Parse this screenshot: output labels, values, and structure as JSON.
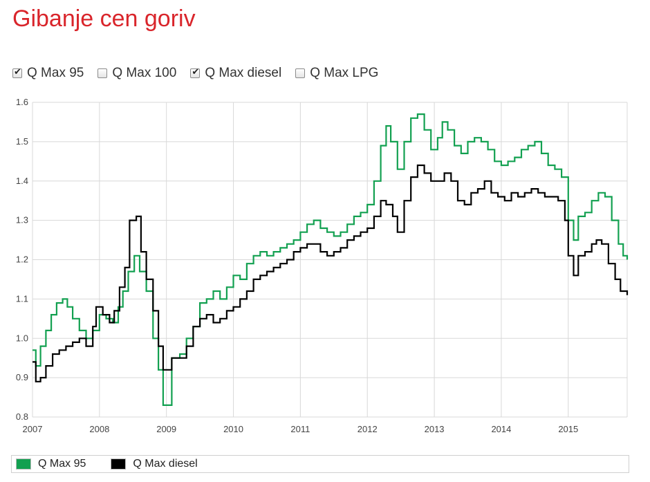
{
  "page": {
    "title": "Gibanje cen goriv"
  },
  "toggles": [
    {
      "label": "Q Max 95",
      "checked": true
    },
    {
      "label": "Q Max 100",
      "checked": false
    },
    {
      "label": "Q Max diesel",
      "checked": true
    },
    {
      "label": "Q Max LPG",
      "checked": false
    }
  ],
  "legend": [
    {
      "label": "Q Max 95",
      "color": "#12a050"
    },
    {
      "label": "Q Max diesel",
      "color": "#000000"
    }
  ],
  "chart_data": {
    "type": "line",
    "step": true,
    "grid": true,
    "legend_position": "bottom",
    "xlim": [
      2007.0,
      2015.88
    ],
    "ylim": [
      0.8,
      1.6
    ],
    "xticks": [
      2007,
      2008,
      2009,
      2010,
      2011,
      2012,
      2013,
      2014,
      2015
    ],
    "yticks": [
      "0.8",
      "0.9",
      "1.0",
      "1.1",
      "1.2",
      "1.3",
      "1.4",
      "1.5",
      "1.6"
    ],
    "series": [
      {
        "name": "Q Max 95",
        "color": "#12a050",
        "points": [
          [
            2007.0,
            0.97
          ],
          [
            2007.05,
            0.93
          ],
          [
            2007.12,
            0.98
          ],
          [
            2007.2,
            1.02
          ],
          [
            2007.28,
            1.06
          ],
          [
            2007.36,
            1.09
          ],
          [
            2007.45,
            1.1
          ],
          [
            2007.52,
            1.08
          ],
          [
            2007.6,
            1.05
          ],
          [
            2007.7,
            1.02
          ],
          [
            2007.8,
            1.0
          ],
          [
            2007.9,
            1.02
          ],
          [
            2008.0,
            1.06
          ],
          [
            2008.1,
            1.05
          ],
          [
            2008.2,
            1.04
          ],
          [
            2008.28,
            1.08
          ],
          [
            2008.35,
            1.12
          ],
          [
            2008.43,
            1.17
          ],
          [
            2008.52,
            1.21
          ],
          [
            2008.6,
            1.17
          ],
          [
            2008.7,
            1.12
          ],
          [
            2008.8,
            1.0
          ],
          [
            2008.88,
            0.92
          ],
          [
            2008.95,
            0.83
          ],
          [
            2009.08,
            0.95
          ],
          [
            2009.2,
            0.96
          ],
          [
            2009.3,
            1.0
          ],
          [
            2009.4,
            1.03
          ],
          [
            2009.5,
            1.09
          ],
          [
            2009.6,
            1.1
          ],
          [
            2009.7,
            1.12
          ],
          [
            2009.8,
            1.1
          ],
          [
            2009.9,
            1.13
          ],
          [
            2010.0,
            1.16
          ],
          [
            2010.1,
            1.15
          ],
          [
            2010.2,
            1.19
          ],
          [
            2010.3,
            1.21
          ],
          [
            2010.4,
            1.22
          ],
          [
            2010.5,
            1.21
          ],
          [
            2010.6,
            1.22
          ],
          [
            2010.7,
            1.23
          ],
          [
            2010.8,
            1.24
          ],
          [
            2010.9,
            1.25
          ],
          [
            2011.0,
            1.27
          ],
          [
            2011.1,
            1.29
          ],
          [
            2011.2,
            1.3
          ],
          [
            2011.3,
            1.28
          ],
          [
            2011.4,
            1.27
          ],
          [
            2011.5,
            1.26
          ],
          [
            2011.6,
            1.27
          ],
          [
            2011.7,
            1.29
          ],
          [
            2011.8,
            1.31
          ],
          [
            2011.9,
            1.32
          ],
          [
            2012.0,
            1.34
          ],
          [
            2012.1,
            1.4
          ],
          [
            2012.2,
            1.49
          ],
          [
            2012.28,
            1.54
          ],
          [
            2012.35,
            1.5
          ],
          [
            2012.45,
            1.43
          ],
          [
            2012.55,
            1.5
          ],
          [
            2012.65,
            1.56
          ],
          [
            2012.75,
            1.57
          ],
          [
            2012.85,
            1.53
          ],
          [
            2012.95,
            1.48
          ],
          [
            2013.05,
            1.51
          ],
          [
            2013.12,
            1.55
          ],
          [
            2013.2,
            1.53
          ],
          [
            2013.3,
            1.49
          ],
          [
            2013.4,
            1.47
          ],
          [
            2013.5,
            1.5
          ],
          [
            2013.6,
            1.51
          ],
          [
            2013.7,
            1.5
          ],
          [
            2013.8,
            1.48
          ],
          [
            2013.9,
            1.45
          ],
          [
            2014.0,
            1.44
          ],
          [
            2014.1,
            1.45
          ],
          [
            2014.2,
            1.46
          ],
          [
            2014.3,
            1.48
          ],
          [
            2014.4,
            1.49
          ],
          [
            2014.5,
            1.5
          ],
          [
            2014.6,
            1.47
          ],
          [
            2014.7,
            1.44
          ],
          [
            2014.8,
            1.43
          ],
          [
            2014.9,
            1.41
          ],
          [
            2015.0,
            1.3
          ],
          [
            2015.08,
            1.25
          ],
          [
            2015.15,
            1.31
          ],
          [
            2015.25,
            1.32
          ],
          [
            2015.35,
            1.35
          ],
          [
            2015.45,
            1.37
          ],
          [
            2015.55,
            1.36
          ],
          [
            2015.65,
            1.3
          ],
          [
            2015.75,
            1.24
          ],
          [
            2015.82,
            1.21
          ],
          [
            2015.88,
            1.2
          ]
        ]
      },
      {
        "name": "Q Max diesel",
        "color": "#000000",
        "points": [
          [
            2007.0,
            0.94
          ],
          [
            2007.05,
            0.89
          ],
          [
            2007.12,
            0.9
          ],
          [
            2007.2,
            0.93
          ],
          [
            2007.3,
            0.96
          ],
          [
            2007.4,
            0.97
          ],
          [
            2007.5,
            0.98
          ],
          [
            2007.6,
            0.99
          ],
          [
            2007.7,
            1.0
          ],
          [
            2007.8,
            0.98
          ],
          [
            2007.9,
            1.03
          ],
          [
            2007.95,
            1.08
          ],
          [
            2008.05,
            1.06
          ],
          [
            2008.15,
            1.04
          ],
          [
            2008.22,
            1.07
          ],
          [
            2008.3,
            1.13
          ],
          [
            2008.38,
            1.18
          ],
          [
            2008.45,
            1.3
          ],
          [
            2008.55,
            1.31
          ],
          [
            2008.62,
            1.22
          ],
          [
            2008.7,
            1.15
          ],
          [
            2008.8,
            1.07
          ],
          [
            2008.88,
            0.98
          ],
          [
            2008.95,
            0.92
          ],
          [
            2009.08,
            0.95
          ],
          [
            2009.2,
            0.95
          ],
          [
            2009.3,
            0.98
          ],
          [
            2009.4,
            1.03
          ],
          [
            2009.5,
            1.05
          ],
          [
            2009.6,
            1.06
          ],
          [
            2009.7,
            1.04
          ],
          [
            2009.8,
            1.05
          ],
          [
            2009.9,
            1.07
          ],
          [
            2010.0,
            1.08
          ],
          [
            2010.1,
            1.1
          ],
          [
            2010.2,
            1.12
          ],
          [
            2010.3,
            1.15
          ],
          [
            2010.4,
            1.16
          ],
          [
            2010.5,
            1.17
          ],
          [
            2010.6,
            1.18
          ],
          [
            2010.7,
            1.19
          ],
          [
            2010.8,
            1.2
          ],
          [
            2010.9,
            1.22
          ],
          [
            2011.0,
            1.23
          ],
          [
            2011.1,
            1.24
          ],
          [
            2011.2,
            1.24
          ],
          [
            2011.3,
            1.22
          ],
          [
            2011.4,
            1.21
          ],
          [
            2011.5,
            1.22
          ],
          [
            2011.6,
            1.23
          ],
          [
            2011.7,
            1.25
          ],
          [
            2011.8,
            1.26
          ],
          [
            2011.9,
            1.27
          ],
          [
            2012.0,
            1.28
          ],
          [
            2012.1,
            1.31
          ],
          [
            2012.2,
            1.35
          ],
          [
            2012.28,
            1.34
          ],
          [
            2012.38,
            1.31
          ],
          [
            2012.45,
            1.27
          ],
          [
            2012.55,
            1.35
          ],
          [
            2012.65,
            1.41
          ],
          [
            2012.75,
            1.44
          ],
          [
            2012.85,
            1.42
          ],
          [
            2012.95,
            1.4
          ],
          [
            2013.05,
            1.4
          ],
          [
            2013.15,
            1.42
          ],
          [
            2013.25,
            1.4
          ],
          [
            2013.35,
            1.35
          ],
          [
            2013.45,
            1.34
          ],
          [
            2013.55,
            1.37
          ],
          [
            2013.65,
            1.38
          ],
          [
            2013.75,
            1.4
          ],
          [
            2013.85,
            1.37
          ],
          [
            2013.95,
            1.36
          ],
          [
            2014.05,
            1.35
          ],
          [
            2014.15,
            1.37
          ],
          [
            2014.25,
            1.36
          ],
          [
            2014.35,
            1.37
          ],
          [
            2014.45,
            1.38
          ],
          [
            2014.55,
            1.37
          ],
          [
            2014.65,
            1.36
          ],
          [
            2014.75,
            1.36
          ],
          [
            2014.85,
            1.35
          ],
          [
            2014.95,
            1.3
          ],
          [
            2015.0,
            1.21
          ],
          [
            2015.08,
            1.16
          ],
          [
            2015.15,
            1.21
          ],
          [
            2015.25,
            1.22
          ],
          [
            2015.35,
            1.24
          ],
          [
            2015.42,
            1.25
          ],
          [
            2015.5,
            1.24
          ],
          [
            2015.6,
            1.19
          ],
          [
            2015.7,
            1.15
          ],
          [
            2015.78,
            1.12
          ],
          [
            2015.88,
            1.11
          ]
        ]
      }
    ]
  }
}
